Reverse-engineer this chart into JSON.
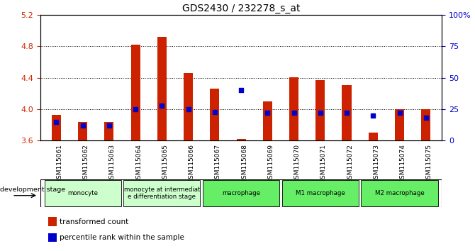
{
  "title": "GDS2430 / 232278_s_at",
  "samples": [
    "GSM115061",
    "GSM115062",
    "GSM115063",
    "GSM115064",
    "GSM115065",
    "GSM115066",
    "GSM115067",
    "GSM115068",
    "GSM115069",
    "GSM115070",
    "GSM115071",
    "GSM115072",
    "GSM115073",
    "GSM115074",
    "GSM115075"
  ],
  "transformed_count": [
    3.93,
    3.84,
    3.84,
    4.82,
    4.92,
    4.46,
    4.26,
    3.62,
    4.1,
    4.41,
    4.37,
    4.31,
    3.7,
    4.0,
    4.0
  ],
  "percentile_rank": [
    15,
    12,
    12,
    25,
    28,
    25,
    23,
    40,
    22,
    22,
    22,
    22,
    20,
    22,
    18
  ],
  "ymin": 3.6,
  "ymax": 5.2,
  "yticks": [
    3.6,
    4.0,
    4.4,
    4.8,
    5.2
  ],
  "right_yticks": [
    0,
    25,
    50,
    75,
    100
  ],
  "group_spans": [
    {
      "label": "monocyte",
      "start": 0,
      "end": 2,
      "color": "#ccffcc"
    },
    {
      "label": "monocyte at intermediat\ne differentiation stage",
      "start": 3,
      "end": 5,
      "color": "#ccffcc"
    },
    {
      "label": "macrophage",
      "start": 6,
      "end": 8,
      "color": "#66ee66"
    },
    {
      "label": "M1 macrophage",
      "start": 9,
      "end": 11,
      "color": "#66ee66"
    },
    {
      "label": "M2 macrophage",
      "start": 12,
      "end": 14,
      "color": "#66ee66"
    }
  ],
  "bar_color": "#cc2200",
  "dot_color": "#0000cc",
  "bg_color": "#ffffff",
  "tick_label_color_left": "#cc2200",
  "tick_label_color_right": "#0000cc",
  "bar_width": 0.35,
  "dot_size": 18
}
